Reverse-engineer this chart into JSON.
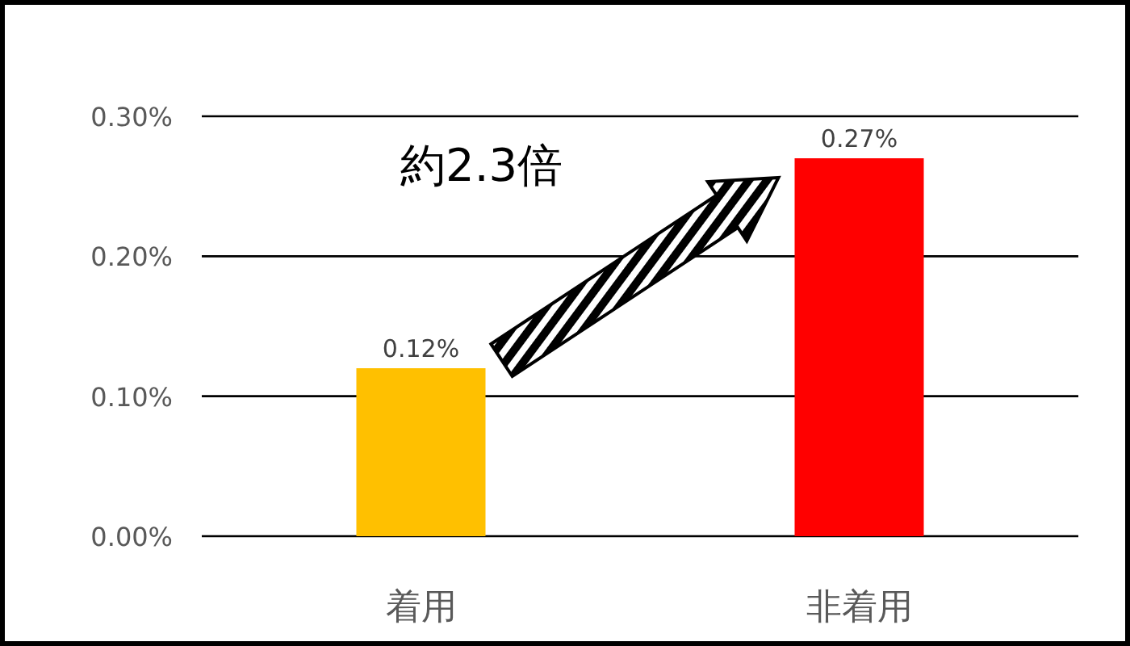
{
  "chart_data": {
    "type": "bar",
    "categories": [
      "着用",
      "非着用"
    ],
    "values": [
      0.12,
      0.27
    ],
    "colors": [
      "#ffc000",
      "#ff0000"
    ],
    "value_labels": [
      "0.12%",
      "0.27%"
    ],
    "ylim": [
      0,
      0.3
    ],
    "yticks": [
      {
        "value": 0,
        "label": "0.00%"
      },
      {
        "value": 0.1,
        "label": "0.10%"
      },
      {
        "value": 0.2,
        "label": "0.20%"
      },
      {
        "value": 0.3,
        "label": "0.30%"
      }
    ],
    "grid": "y",
    "annotations": [
      "約2.3倍"
    ]
  }
}
